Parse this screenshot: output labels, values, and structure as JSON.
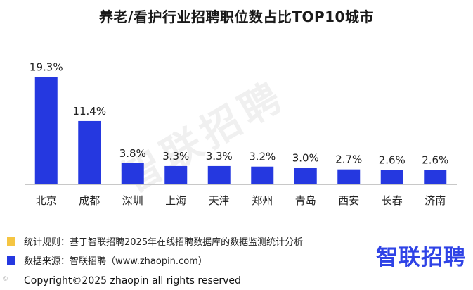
{
  "title": "养老/看护行业招聘职位数占比TOP10城市",
  "watermark": "智联招聘",
  "chart_data": {
    "type": "bar",
    "categories": [
      "北京",
      "成都",
      "深圳",
      "上海",
      "天津",
      "郑州",
      "青岛",
      "西安",
      "长春",
      "济南"
    ],
    "values": [
      19.3,
      11.4,
      3.8,
      3.3,
      3.3,
      3.2,
      3.0,
      2.7,
      2.6,
      2.6
    ],
    "value_labels": [
      "19.3%",
      "11.4%",
      "3.8%",
      "3.3%",
      "3.3%",
      "3.2%",
      "3.0%",
      "2.7%",
      "2.6%",
      "2.6%"
    ],
    "ylim": [
      0,
      20
    ],
    "bar_color": "#2538e0",
    "grid": false,
    "title": "养老/看护行业招聘职位数占比TOP10城市"
  },
  "notes": [
    {
      "text": "统计规则：基于智联招聘2025年在线招聘数据库的数据监测统计分析",
      "color": "#f5c542"
    },
    {
      "text": "数据来源：智联招聘（www.zhaopin.com）",
      "color": "#2538e0"
    }
  ],
  "logo": "智联招聘",
  "copyright": "Copyright©2025 zhaopin all rights reserved",
  "seal_text": "©"
}
